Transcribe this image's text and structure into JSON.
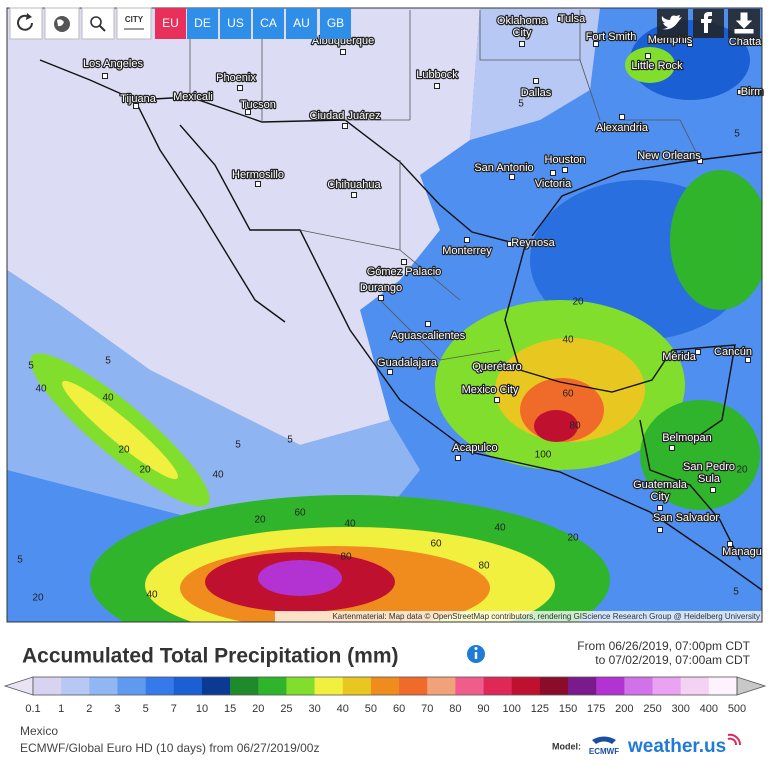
{
  "toolbar": {
    "city_button": "CITY",
    "regions": [
      "EU",
      "DE",
      "US",
      "CA",
      "AU",
      "GB"
    ],
    "active_region": "EU"
  },
  "map": {
    "cities": [
      [
        "Oklahoma",
        "City"
      ],
      [
        "Tulsa"
      ],
      [
        "Fort Smith"
      ],
      [
        "Memphis"
      ],
      [
        "Chatta"
      ],
      [
        "Los Angeles"
      ],
      [
        "Albuquerque"
      ],
      [
        "Little Rock"
      ],
      [
        "Phoenix"
      ],
      [
        "Lubbock"
      ],
      [
        "Birm"
      ],
      [
        "Tijuana"
      ],
      [
        "Mexicali"
      ],
      [
        "Tucson"
      ],
      [
        "Dallas"
      ],
      [
        "Ciudad Juárez"
      ],
      [
        "Alexandria"
      ],
      [
        "Houston"
      ],
      [
        "New Orleans"
      ],
      [
        "San Antonio"
      ],
      [
        "Hermosillo"
      ],
      [
        "Chihuahua"
      ],
      [
        "Victoria"
      ],
      [
        "Monterrey"
      ],
      [
        "Reynosa"
      ],
      [
        "Gómez Palacio"
      ],
      [
        "Durango"
      ],
      [
        "Aguascalientes"
      ],
      [
        "Mérida"
      ],
      [
        "Cancún"
      ],
      [
        "Guadalajara"
      ],
      [
        "Querétaro"
      ],
      [
        "Mexico City"
      ],
      [
        "Acapulco"
      ],
      [
        "Belmopan"
      ],
      [
        "San Pedro",
        "Sula"
      ],
      [
        "Guatemala",
        "City"
      ],
      [
        "San Salvador"
      ],
      [
        "Managu"
      ]
    ],
    "contour_labels": [
      "5",
      "5",
      "40",
      "40",
      "20",
      "20",
      "40",
      "5",
      "5",
      "20",
      "40",
      "60",
      "80",
      "60",
      "40",
      "80",
      "40",
      "60",
      "80",
      "100",
      "20",
      "20",
      "5",
      "5",
      "20",
      "5",
      "5",
      "40",
      "20"
    ],
    "attribution": "Kartenmaterial: Map data © OpenStreetMap contributors, rendering GIScience Research Group @ Heidelberg University"
  },
  "legend": {
    "title": "Accumulated Total Precipitation (mm)",
    "period": [
      "From 06/26/2019, 07:00pm CDT",
      "to 07/02/2019, 07:00am CDT"
    ],
    "labels": [
      0.1,
      1,
      2,
      3,
      5,
      7,
      10,
      15,
      20,
      25,
      30,
      40,
      50,
      60,
      70,
      80,
      90,
      100,
      125,
      150,
      175,
      200,
      250,
      300,
      400,
      500
    ],
    "colors": [
      "#e8e4f4",
      "#d7d3f0",
      "#b8c8f4",
      "#90b6f4",
      "#5f9af0",
      "#3579ea",
      "#1a5fd4",
      "#0b3a94",
      "#1e8a2c",
      "#30b42c",
      "#82de2c",
      "#f2f03e",
      "#e8c820",
      "#f08c1e",
      "#f06a2a",
      "#f2a27a",
      "#f05c8c",
      "#e02858",
      "#c01030",
      "#8a0c28",
      "#7a1a8c",
      "#b232d2",
      "#d272e8",
      "#eaa2f2",
      "#f4d2f4",
      "#fff2ff",
      "#c8c8c8"
    ]
  },
  "footer": {
    "region": "Mexico",
    "model_run": "ECMWF/Global Euro HD (10 days) from 06/27/2019/00z",
    "model_label": "Model:",
    "model": "ECMWF",
    "brand": "weather.us"
  }
}
